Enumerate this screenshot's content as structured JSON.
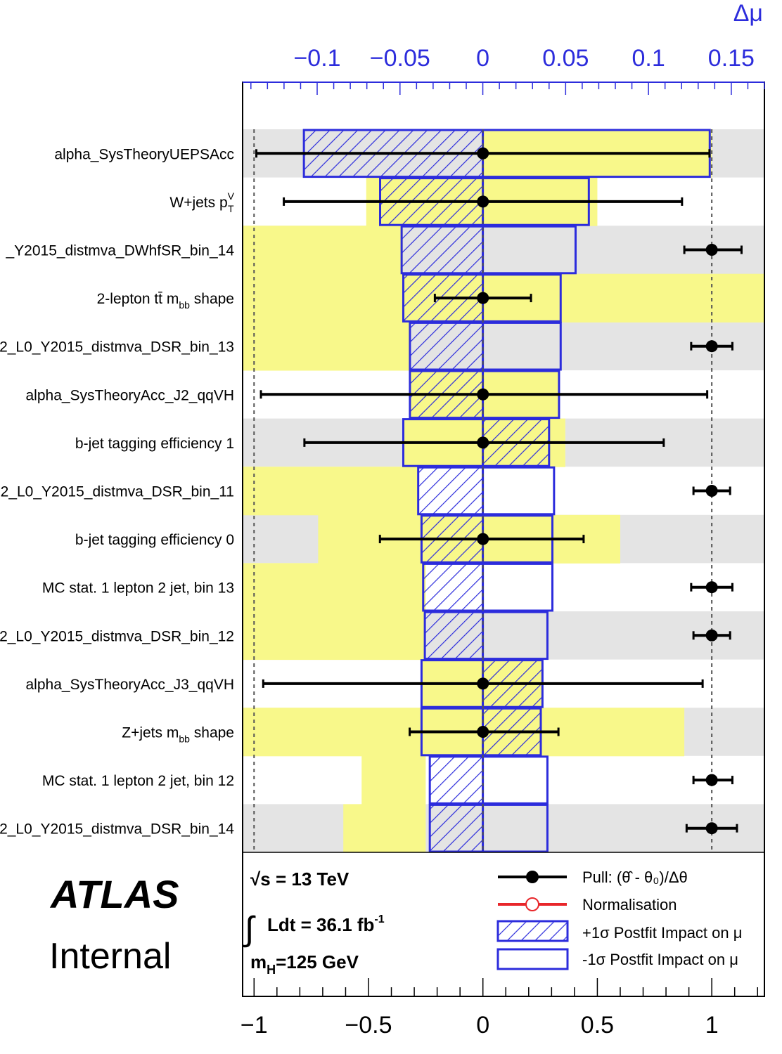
{
  "chart_data": {
    "type": "ranking",
    "top_axis": {
      "label": "Δμ",
      "range": [
        -0.145,
        0.17
      ],
      "ticks": [
        -0.1,
        -0.05,
        0,
        0.05,
        0.1,
        0.15
      ],
      "tick_labels": [
        "−0.1",
        "−0.05",
        "0",
        "0.05",
        "0.1",
        "0.15"
      ]
    },
    "bottom_axis": {
      "label": "",
      "range": [
        -1.05,
        1.23
      ],
      "ticks": [
        -1,
        -0.5,
        0,
        0.5,
        1
      ],
      "tick_labels": [
        "−1",
        "−0.5",
        "0",
        "0.5",
        "1"
      ]
    },
    "rows": [
      {
        "label": "alpha_SysTheoryUEPSAcc",
        "pull": 0,
        "err_lo": -0.99,
        "err_hi": 0.99,
        "band": "gray",
        "yellow_lo": 0,
        "yellow_hi": 1.0,
        "impact_up": -0.108,
        "impact_down": 0.137
      },
      {
        "label": "W+jets p",
        "sup": "V",
        "sub": "T",
        "pull": 0,
        "err_lo": -0.87,
        "err_hi": 0.87,
        "band": "white",
        "yellow_lo": -0.51,
        "yellow_hi": 0.5,
        "impact_up": -0.062,
        "impact_down": 0.064
      },
      {
        "label": "_Y2015_distmva_DWhfSR_bin_14",
        "pull": 1.0,
        "err_lo": 0.88,
        "err_hi": 1.13,
        "band": "gray",
        "yellow_lo": -1.05,
        "yellow_hi": -0.35,
        "impact_up": -0.049,
        "impact_down": 0.056
      },
      {
        "label": "2-lepton tt̄ m",
        "sub": "bb",
        "tail": " shape",
        "pull": 0,
        "err_lo": -0.21,
        "err_hi": 0.21,
        "band": "yellow",
        "yellow_lo": -1.05,
        "yellow_hi": 1.23,
        "impact_up": -0.048,
        "impact_down": 0.047
      },
      {
        "label": "2_L0_Y2015_distmva_DSR_bin_13",
        "pull": 1.0,
        "err_lo": 0.91,
        "err_hi": 1.09,
        "band": "gray",
        "yellow_lo": -1.05,
        "yellow_hi": -0.32,
        "impact_up": -0.044,
        "impact_down": 0.047
      },
      {
        "label": "alpha_SysTheoryAcc_J2_qqVH",
        "pull": 0,
        "err_lo": -0.97,
        "err_hi": 0.98,
        "band": "white",
        "yellow_lo": -0.32,
        "yellow_hi": 0.33,
        "impact_up": -0.044,
        "impact_down": 0.046
      },
      {
        "label": "b-jet tagging efficiency 1",
        "pull": 0,
        "err_lo": -0.78,
        "err_hi": 0.79,
        "band": "gray",
        "yellow_lo": -0.35,
        "yellow_hi": 0.36,
        "impact_up": 0.04,
        "impact_down": -0.048
      },
      {
        "label": "2_L0_Y2015_distmva_DSR_bin_11",
        "pull": 1.0,
        "err_lo": 0.92,
        "err_hi": 1.08,
        "band": "white",
        "yellow_lo": -1.05,
        "yellow_hi": -0.28,
        "impact_up": -0.039,
        "impact_down": 0.043
      },
      {
        "label": "b-jet tagging efficiency 0",
        "pull": 0,
        "err_lo": -0.45,
        "err_hi": 0.44,
        "band": "gray",
        "yellow_lo": -0.72,
        "yellow_hi": 0.6,
        "impact_up": -0.037,
        "impact_down": 0.042
      },
      {
        "label": "MC stat. 1 lepton 2 jet, bin 13",
        "pull": 1.0,
        "err_lo": 0.91,
        "err_hi": 1.09,
        "band": "white",
        "yellow_lo": -1.05,
        "yellow_hi": -0.25,
        "impact_up": -0.036,
        "impact_down": 0.042
      },
      {
        "label": "2_L0_Y2015_distmva_DSR_bin_12",
        "pull": 1.0,
        "err_lo": 0.92,
        "err_hi": 1.08,
        "band": "gray",
        "yellow_lo": -1.05,
        "yellow_hi": -0.25,
        "impact_up": -0.035,
        "impact_down": 0.039
      },
      {
        "label": "alpha_SysTheoryAcc_J3_qqVH",
        "pull": 0,
        "err_lo": -0.96,
        "err_hi": 0.96,
        "band": "white",
        "yellow_lo": -0.27,
        "yellow_hi": 0.26,
        "impact_up": 0.036,
        "impact_down": -0.037
      },
      {
        "label": "Z+jets m",
        "sub": "bb",
        "tail": " shape",
        "pull": 0,
        "err_lo": -0.32,
        "err_hi": 0.33,
        "band": "gray",
        "yellow_lo": -1.05,
        "yellow_hi": 0.88,
        "impact_up": 0.035,
        "impact_down": -0.037
      },
      {
        "label": "MC stat. 1 lepton 2 jet, bin 12",
        "pull": 1.0,
        "err_lo": 0.92,
        "err_hi": 1.09,
        "band": "white",
        "yellow_lo": -0.53,
        "yellow_hi": -0.25,
        "impact_up": -0.032,
        "impact_down": 0.039
      },
      {
        "label": "2_L0_Y2015_distmva_DSR_bin_14",
        "pull": 1.0,
        "err_lo": 0.89,
        "err_hi": 1.11,
        "band": "gray",
        "yellow_lo": -0.61,
        "yellow_hi": -0.25,
        "impact_up": -0.032,
        "impact_down": 0.039
      }
    ],
    "legend": {
      "pull": "Pull: (θ̂ - θ₀)/Δθ",
      "norm": "Normalisation",
      "plus": "+1σ Postfit Impact on μ",
      "minus": "-1σ Postfit Impact on μ"
    }
  },
  "info": {
    "brand": "ATLAS",
    "internal": "Internal",
    "energy": "√s = 13 TeV",
    "lumi_symbol": "∫",
    "lumi_text": "Ldt = 36.1 fb",
    "lumi_sup": "-1",
    "mass_m": "m",
    "mass_sub": "H",
    "mass_rest": "=125 GeV"
  },
  "colors": {
    "blue": "#2c2cdc",
    "yellow": "#f8f88a",
    "gray": "#e4e4e4",
    "black": "#000000",
    "red": "#e8262a"
  }
}
